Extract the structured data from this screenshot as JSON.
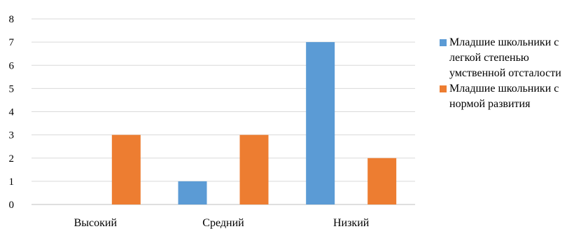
{
  "chart_data": {
    "type": "bar",
    "categories": [
      "Высокий",
      "Средний",
      "Низкий"
    ],
    "series": [
      {
        "name": "Младшие школьники с легкой степенью умственной отсталости",
        "color": "#5b9bd5",
        "values": [
          0,
          1,
          7
        ]
      },
      {
        "name": "Младшие школьники с нормой развития",
        "color": "#ed7d31",
        "values": [
          3,
          3,
          2
        ]
      }
    ],
    "ylim": [
      0,
      8
    ],
    "yticks": [
      "0",
      "1",
      "2",
      "3",
      "4",
      "5",
      "6",
      "7",
      "8"
    ],
    "grid": true,
    "legend_position": "right"
  }
}
